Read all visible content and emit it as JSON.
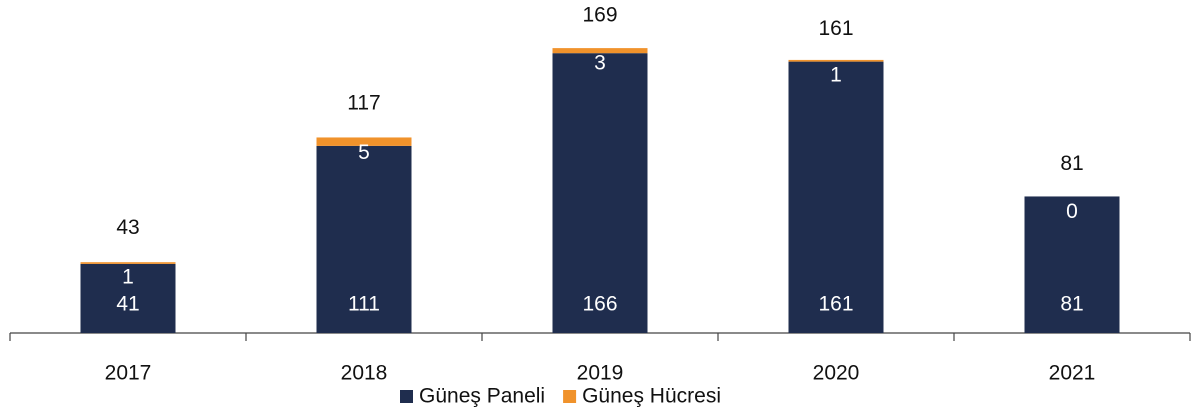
{
  "chart_data": {
    "type": "stacked_bar",
    "categories": [
      "2017",
      "2018",
      "2019",
      "2020",
      "2021"
    ],
    "series": [
      {
        "name": "Güneş Paneli",
        "color": "#1f2d4e",
        "values": [
          41,
          111,
          166,
          161,
          81
        ]
      },
      {
        "name": "Güneş Hücresi",
        "color": "#f0922b",
        "values": [
          1,
          5,
          3,
          1,
          0
        ]
      }
    ],
    "totals": [
      43,
      117,
      169,
      161,
      81
    ],
    "ylim": [
      0,
      175
    ],
    "legend": "bottom"
  }
}
